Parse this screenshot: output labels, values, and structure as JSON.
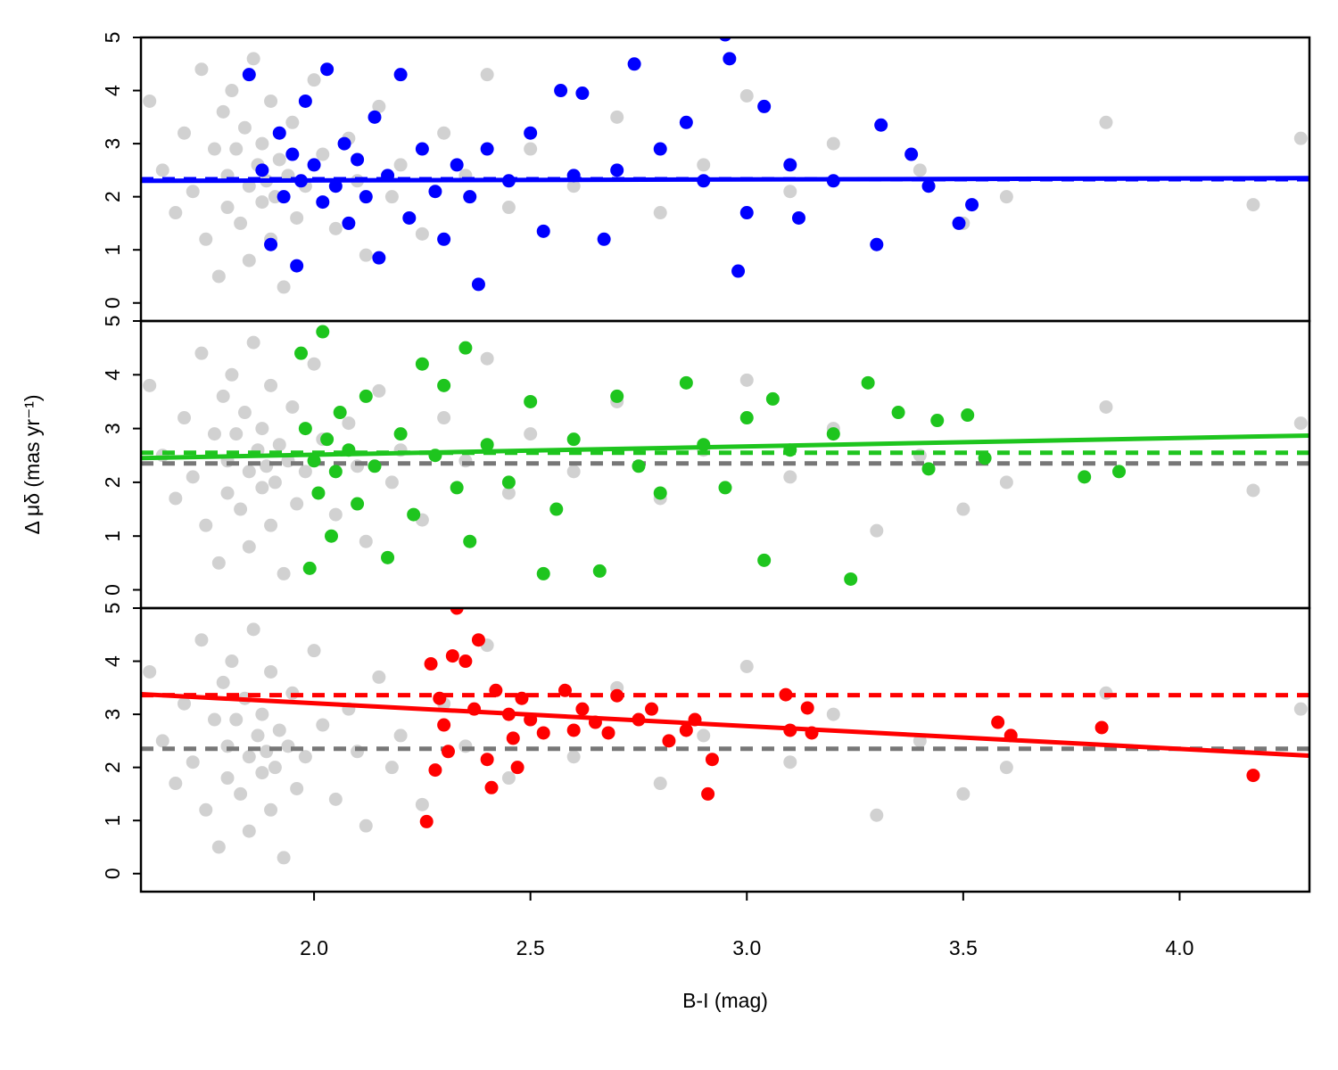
{
  "chart_data": [
    {
      "type": "scatter",
      "xlim": [
        1.6,
        4.3
      ],
      "ylim": [
        -0.34,
        5.0
      ],
      "yticks": [
        0,
        1,
        2,
        3,
        4,
        5
      ],
      "series": [
        {
          "mode": "points",
          "color": "rgba(0,0,0,0.18)",
          "x": [
            1.62,
            1.65,
            1.68,
            1.7,
            1.72,
            1.74,
            1.75,
            1.77,
            1.78,
            1.79,
            1.8,
            1.8,
            1.81,
            1.82,
            1.83,
            1.84,
            1.85,
            1.85,
            1.86,
            1.87,
            1.88,
            1.88,
            1.89,
            1.9,
            1.9,
            1.91,
            1.92,
            1.93,
            1.94,
            1.95,
            1.96,
            1.98,
            2.0,
            2.02,
            2.05,
            2.08,
            2.1,
            2.12,
            2.15,
            2.18,
            2.2,
            2.25,
            2.3,
            2.35,
            2.4,
            2.45,
            2.5,
            2.6,
            2.7,
            2.8,
            2.9,
            3.0,
            3.1,
            3.2,
            3.3,
            3.4,
            3.5,
            3.6,
            3.83,
            4.17,
            4.28
          ],
          "values": [
            3.8,
            2.5,
            1.7,
            3.2,
            2.1,
            4.4,
            1.2,
            2.9,
            0.5,
            3.6,
            2.4,
            1.8,
            4.0,
            2.9,
            1.5,
            3.3,
            2.2,
            0.8,
            4.6,
            2.6,
            1.9,
            3.0,
            2.3,
            1.2,
            3.8,
            2.0,
            2.7,
            0.3,
            2.4,
            3.4,
            1.6,
            2.2,
            4.2,
            2.8,
            1.4,
            3.1,
            2.3,
            0.9,
            3.7,
            2.0,
            2.6,
            1.3,
            3.2,
            2.4,
            4.3,
            1.8,
            2.9,
            2.2,
            3.5,
            1.7,
            2.6,
            3.9,
            2.1,
            3.0,
            1.1,
            2.5,
            1.5,
            2.0,
            3.4,
            1.85,
            3.1
          ]
        },
        {
          "mode": "line",
          "dash": true,
          "color": "#777777",
          "x": [
            1.6,
            4.3
          ],
          "values": [
            2.33,
            2.33
          ]
        },
        {
          "mode": "line",
          "dash": true,
          "color": "#0000ff",
          "x": [
            1.6,
            4.3
          ],
          "values": [
            2.33,
            2.33
          ]
        },
        {
          "mode": "points",
          "color": "#0000ff",
          "x": [
            1.85,
            1.88,
            1.9,
            1.92,
            1.93,
            1.95,
            1.96,
            1.97,
            1.98,
            2.0,
            2.02,
            2.03,
            2.05,
            2.07,
            2.08,
            2.1,
            2.12,
            2.14,
            2.15,
            2.17,
            2.2,
            2.22,
            2.25,
            2.28,
            2.3,
            2.33,
            2.36,
            2.38,
            2.4,
            2.45,
            2.5,
            2.53,
            2.57,
            2.6,
            2.62,
            2.67,
            2.7,
            2.74,
            2.8,
            2.86,
            2.9,
            2.95,
            2.96,
            2.98,
            3.0,
            3.04,
            3.1,
            3.12,
            3.2,
            3.3,
            3.31,
            3.38,
            3.42,
            3.49,
            3.52
          ],
          "values": [
            4.3,
            2.5,
            1.1,
            3.2,
            2.0,
            2.8,
            0.7,
            2.3,
            3.8,
            2.6,
            1.9,
            4.4,
            2.2,
            3.0,
            1.5,
            2.7,
            2.0,
            3.5,
            0.85,
            2.4,
            4.3,
            1.6,
            2.9,
            2.1,
            1.2,
            2.6,
            2.0,
            0.35,
            2.9,
            2.3,
            3.2,
            1.35,
            4.0,
            2.4,
            3.95,
            1.2,
            2.5,
            4.5,
            2.9,
            3.4,
            2.3,
            5.05,
            4.6,
            0.6,
            1.7,
            3.7,
            2.6,
            1.6,
            2.3,
            1.1,
            3.35,
            2.8,
            2.2,
            1.5,
            1.85
          ]
        },
        {
          "mode": "line",
          "color": "#0000ff",
          "x": [
            1.6,
            4.3
          ],
          "values": [
            2.3,
            2.35
          ]
        }
      ]
    },
    {
      "type": "scatter",
      "xlim": [
        1.6,
        4.3
      ],
      "ylim": [
        -0.34,
        5.0
      ],
      "yticks": [
        0,
        1,
        2,
        3,
        4,
        5
      ],
      "ylabel": "Δ μδ (mas yr⁻¹)",
      "series": [
        {
          "mode": "points",
          "color": "rgba(0,0,0,0.18)",
          "x": [
            1.62,
            1.65,
            1.68,
            1.7,
            1.72,
            1.74,
            1.75,
            1.77,
            1.78,
            1.79,
            1.8,
            1.8,
            1.81,
            1.82,
            1.83,
            1.84,
            1.85,
            1.85,
            1.86,
            1.87,
            1.88,
            1.88,
            1.89,
            1.9,
            1.9,
            1.91,
            1.92,
            1.93,
            1.94,
            1.95,
            1.96,
            1.98,
            2.0,
            2.02,
            2.05,
            2.08,
            2.1,
            2.12,
            2.15,
            2.18,
            2.2,
            2.25,
            2.3,
            2.35,
            2.4,
            2.45,
            2.5,
            2.6,
            2.7,
            2.8,
            2.9,
            3.0,
            3.1,
            3.2,
            3.3,
            3.4,
            3.5,
            3.6,
            3.83,
            4.17,
            4.28
          ],
          "values": [
            3.8,
            2.5,
            1.7,
            3.2,
            2.1,
            4.4,
            1.2,
            2.9,
            0.5,
            3.6,
            2.4,
            1.8,
            4.0,
            2.9,
            1.5,
            3.3,
            2.2,
            0.8,
            4.6,
            2.6,
            1.9,
            3.0,
            2.3,
            1.2,
            3.8,
            2.0,
            2.7,
            0.3,
            2.4,
            3.4,
            1.6,
            2.2,
            4.2,
            2.8,
            1.4,
            3.1,
            2.3,
            0.9,
            3.7,
            2.0,
            2.6,
            1.3,
            3.2,
            2.4,
            4.3,
            1.8,
            2.9,
            2.2,
            3.5,
            1.7,
            2.6,
            3.9,
            2.1,
            3.0,
            1.1,
            2.5,
            1.5,
            2.0,
            3.4,
            1.85,
            3.1
          ]
        },
        {
          "mode": "line",
          "dash": true,
          "color": "#777777",
          "x": [
            1.6,
            4.3
          ],
          "values": [
            2.35,
            2.35
          ]
        },
        {
          "mode": "line",
          "dash": true,
          "color": "#1ec51e",
          "x": [
            1.6,
            4.3
          ],
          "values": [
            2.55,
            2.55
          ]
        },
        {
          "mode": "points",
          "color": "#1ec51e",
          "x": [
            1.97,
            1.98,
            1.99,
            2.0,
            2.01,
            2.02,
            2.03,
            2.04,
            2.05,
            2.06,
            2.08,
            2.1,
            2.12,
            2.14,
            2.17,
            2.2,
            2.23,
            2.25,
            2.28,
            2.3,
            2.33,
            2.35,
            2.36,
            2.4,
            2.45,
            2.5,
            2.53,
            2.56,
            2.6,
            2.66,
            2.7,
            2.75,
            2.8,
            2.86,
            2.9,
            2.95,
            3.0,
            3.04,
            3.06,
            3.1,
            3.2,
            3.24,
            3.28,
            3.35,
            3.42,
            3.44,
            3.51,
            3.55,
            3.78,
            3.86
          ],
          "values": [
            4.4,
            3.0,
            0.4,
            2.4,
            1.8,
            4.8,
            2.8,
            1.0,
            2.2,
            3.3,
            2.6,
            1.6,
            3.6,
            2.3,
            0.6,
            2.9,
            1.4,
            4.2,
            2.5,
            3.8,
            1.9,
            4.5,
            0.9,
            2.7,
            2.0,
            3.5,
            0.3,
            1.5,
            2.8,
            0.35,
            3.6,
            2.3,
            1.8,
            3.85,
            2.7,
            1.9,
            3.2,
            0.55,
            3.55,
            2.6,
            2.9,
            0.2,
            3.85,
            3.3,
            2.25,
            3.15,
            3.25,
            2.45,
            2.1,
            2.2
          ]
        },
        {
          "mode": "line",
          "color": "#1ec51e",
          "x": [
            1.6,
            4.3
          ],
          "values": [
            2.45,
            2.87
          ]
        }
      ]
    },
    {
      "type": "scatter",
      "xlim": [
        1.6,
        4.3
      ],
      "ylim": [
        -0.34,
        5.0
      ],
      "yticks": [
        0,
        1,
        2,
        3,
        4,
        5
      ],
      "xticks": [
        {
          "value": 2,
          "label": "2.0"
        },
        {
          "value": 2.5,
          "label": "2.5"
        },
        {
          "value": 3,
          "label": "3.0"
        },
        {
          "value": 3.5,
          "label": "3.5"
        },
        {
          "value": 4,
          "label": "4.0"
        }
      ],
      "xlabel": "B-I (mag)",
      "series": [
        {
          "mode": "points",
          "color": "rgba(0,0,0,0.18)",
          "x": [
            1.62,
            1.65,
            1.68,
            1.7,
            1.72,
            1.74,
            1.75,
            1.77,
            1.78,
            1.79,
            1.8,
            1.8,
            1.81,
            1.82,
            1.83,
            1.84,
            1.85,
            1.85,
            1.86,
            1.87,
            1.88,
            1.88,
            1.89,
            1.9,
            1.9,
            1.91,
            1.92,
            1.93,
            1.94,
            1.95,
            1.96,
            1.98,
            2.0,
            2.02,
            2.05,
            2.08,
            2.1,
            2.12,
            2.15,
            2.18,
            2.2,
            2.25,
            2.3,
            2.35,
            2.4,
            2.45,
            2.5,
            2.6,
            2.7,
            2.8,
            2.9,
            3.0,
            3.1,
            3.2,
            3.3,
            3.4,
            3.5,
            3.6,
            3.83,
            4.17,
            4.28
          ],
          "values": [
            3.8,
            2.5,
            1.7,
            3.2,
            2.1,
            4.4,
            1.2,
            2.9,
            0.5,
            3.6,
            2.4,
            1.8,
            4.0,
            2.9,
            1.5,
            3.3,
            2.2,
            0.8,
            4.6,
            2.6,
            1.9,
            3.0,
            2.3,
            1.2,
            3.8,
            2.0,
            2.7,
            0.3,
            2.4,
            3.4,
            1.6,
            2.2,
            4.2,
            2.8,
            1.4,
            3.1,
            2.3,
            0.9,
            3.7,
            2.0,
            2.6,
            1.3,
            3.2,
            2.4,
            4.3,
            1.8,
            2.9,
            2.2,
            3.5,
            1.7,
            2.6,
            3.9,
            2.1,
            3.0,
            1.1,
            2.5,
            1.5,
            2.0,
            3.4,
            1.85,
            3.1
          ]
        },
        {
          "mode": "line",
          "dash": true,
          "color": "#777777",
          "x": [
            1.6,
            4.3
          ],
          "values": [
            2.35,
            2.35
          ]
        },
        {
          "mode": "line",
          "dash": true,
          "color": "#ff0000",
          "x": [
            1.6,
            4.3
          ],
          "values": [
            3.36,
            3.36
          ]
        },
        {
          "mode": "points",
          "color": "#ff0000",
          "x": [
            2.26,
            2.27,
            2.28,
            2.29,
            2.3,
            2.31,
            2.32,
            2.33,
            2.35,
            2.37,
            2.38,
            2.4,
            2.41,
            2.42,
            2.45,
            2.46,
            2.47,
            2.48,
            2.5,
            2.53,
            2.58,
            2.6,
            2.62,
            2.65,
            2.68,
            2.7,
            2.75,
            2.78,
            2.82,
            2.86,
            2.88,
            2.91,
            2.92,
            3.09,
            3.1,
            3.14,
            3.15,
            3.58,
            3.61,
            3.82,
            4.17
          ],
          "values": [
            0.98,
            3.95,
            1.95,
            3.3,
            2.8,
            2.3,
            4.1,
            5.0,
            4.0,
            3.1,
            4.4,
            2.15,
            1.62,
            3.45,
            3.0,
            2.55,
            2.0,
            3.3,
            2.9,
            2.65,
            3.45,
            2.7,
            3.1,
            2.85,
            2.65,
            3.35,
            2.9,
            3.1,
            2.5,
            2.7,
            2.9,
            1.5,
            2.15,
            3.37,
            2.7,
            3.12,
            2.65,
            2.85,
            2.6,
            2.75,
            1.85
          ]
        },
        {
          "mode": "line",
          "color": "#ff0000",
          "x": [
            1.6,
            4.3
          ],
          "values": [
            3.38,
            2.22
          ]
        }
      ]
    }
  ]
}
